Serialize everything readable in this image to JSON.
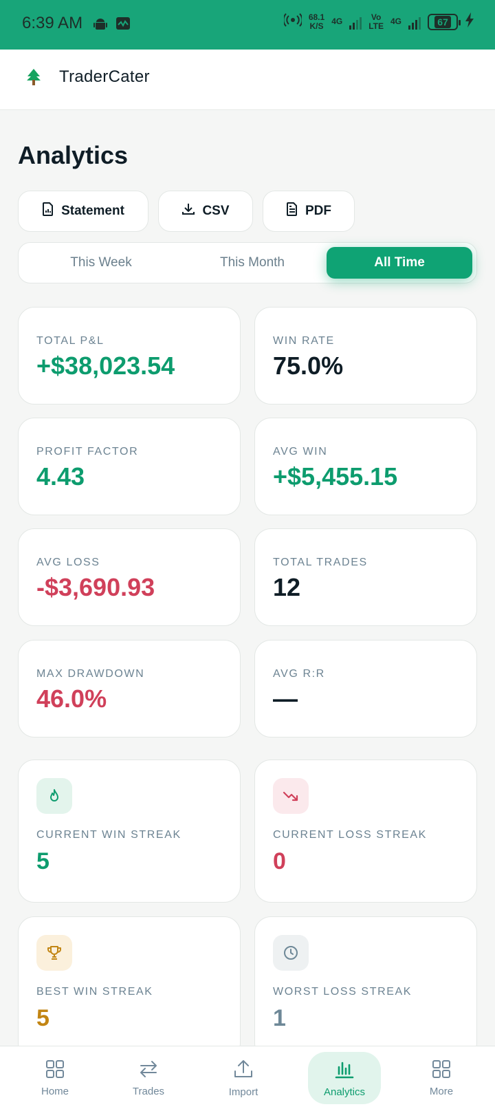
{
  "status_bar": {
    "time": "6:39 AM",
    "net_speed_top": "68.1",
    "net_speed_bottom": "K/S",
    "sim1_label": "4G",
    "volte_top": "Vo",
    "volte_bottom": "LTE",
    "sim2_label": "4G",
    "battery": "67"
  },
  "app": {
    "name": "TraderCater"
  },
  "page": {
    "title": "Analytics"
  },
  "exports": [
    {
      "label": "Statement",
      "icon": "statement-icon"
    },
    {
      "label": "CSV",
      "icon": "download-icon"
    },
    {
      "label": "PDF",
      "icon": "document-icon"
    }
  ],
  "periods": {
    "items": [
      "This Week",
      "This Month",
      "All Time"
    ],
    "selected": "All Time"
  },
  "stats": [
    {
      "label": "TOTAL P&L",
      "value": "+$38,023.54",
      "tone": "positive"
    },
    {
      "label": "WIN RATE",
      "value": "75.0%",
      "tone": "neutral"
    },
    {
      "label": "PROFIT FACTOR",
      "value": "4.43",
      "tone": "positive"
    },
    {
      "label": "AVG WIN",
      "value": "+$5,455.15",
      "tone": "positive"
    },
    {
      "label": "AVG LOSS",
      "value": "-$3,690.93",
      "tone": "negative"
    },
    {
      "label": "TOTAL TRADES",
      "value": "12",
      "tone": "neutral"
    },
    {
      "label": "MAX DRAWDOWN",
      "value": "46.0%",
      "tone": "negative"
    },
    {
      "label": "AVG R:R",
      "value": "—",
      "tone": "neutral"
    }
  ],
  "streaks": [
    {
      "label": "CURRENT WIN STREAK",
      "value": "5",
      "icon": "flame-icon"
    },
    {
      "label": "CURRENT LOSS STREAK",
      "value": "0",
      "icon": "trend-down-icon"
    },
    {
      "label": "BEST WIN STREAK",
      "value": "5",
      "icon": "trophy-icon"
    },
    {
      "label": "WORST LOSS STREAK",
      "value": "1",
      "icon": "clock-icon"
    }
  ],
  "nav": [
    {
      "label": "Home",
      "icon": "grid-icon"
    },
    {
      "label": "Trades",
      "icon": "swap-arrows-icon"
    },
    {
      "label": "Import",
      "icon": "upload-icon"
    },
    {
      "label": "Analytics",
      "icon": "bar-chart-icon",
      "active": true
    },
    {
      "label": "More",
      "icon": "grid-icon"
    }
  ],
  "colors": {
    "brand": "#18a579",
    "accent": "#0fa374",
    "positive": "#0d9c6e",
    "negative": "#d0405a",
    "amber": "#c28513"
  }
}
